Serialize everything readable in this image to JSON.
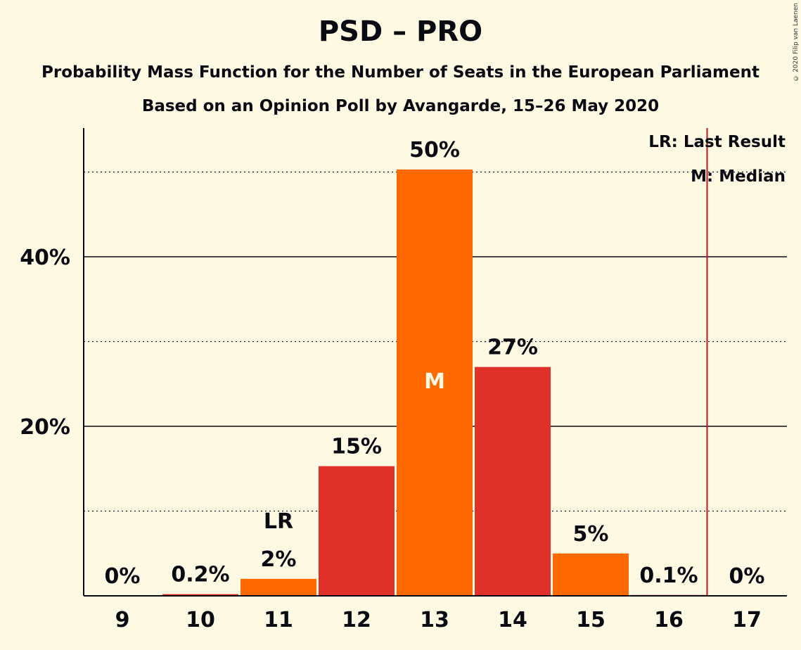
{
  "title": "PSD – PRO",
  "subtitle1": "Probability Mass Function for the Number of Seats in the European Parliament",
  "subtitle2": "Based on an Opinion Poll by Avangarde, 15–26 May 2020",
  "copyright": "© 2020 Filip van Laenen",
  "legend": {
    "lr": "LR: Last Result",
    "median": "M: Median"
  },
  "colors": {
    "background": "#fef9e2",
    "orange": "#ff6a00",
    "red": "#e0302a",
    "lr_line": "#c0141e"
  },
  "chart_data": {
    "type": "bar",
    "categories": [
      "9",
      "10",
      "11",
      "12",
      "13",
      "14",
      "15",
      "16",
      "17"
    ],
    "values": [
      0,
      0.2,
      2,
      15.3,
      50.3,
      27,
      5,
      0.1,
      0
    ],
    "data_labels": [
      "0%",
      "0.2%",
      "2%",
      "15%",
      "50%",
      "27%",
      "5%",
      "0.1%",
      "0%"
    ],
    "bar_colors": [
      "#ff6a00",
      "#e0302a",
      "#ff6a00",
      "#e0302a",
      "#ff6a00",
      "#e0302a",
      "#ff6a00",
      "#e0302a",
      "#ff6a00"
    ],
    "yticks": [
      20,
      40
    ],
    "ytick_labels": [
      "20%",
      "40%"
    ],
    "minor_gridlines": [
      10,
      30,
      50
    ],
    "ylim": [
      0,
      55
    ],
    "last_result": {
      "category": "11",
      "label": "LR"
    },
    "median": {
      "category": "13",
      "label": "M"
    },
    "majority_line_between": [
      "16",
      "17"
    ]
  }
}
